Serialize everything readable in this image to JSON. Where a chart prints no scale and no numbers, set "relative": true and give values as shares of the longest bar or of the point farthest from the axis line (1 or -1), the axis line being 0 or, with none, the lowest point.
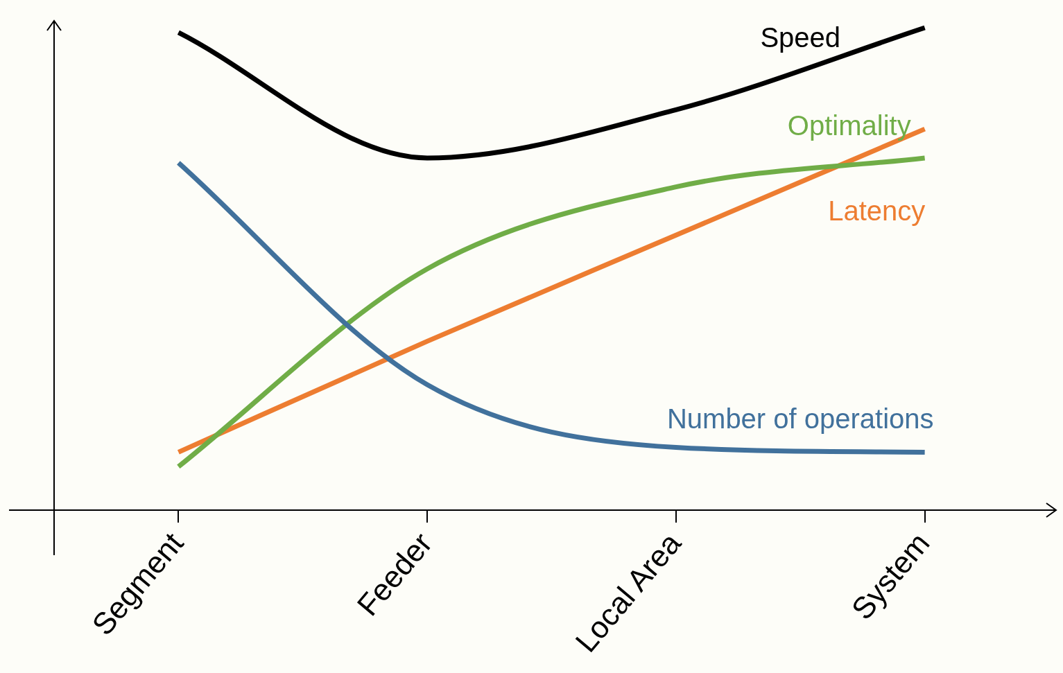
{
  "chart_data": {
    "type": "line",
    "relative": true,
    "categories": [
      "Segment",
      "Feeder",
      "Local Area",
      "System"
    ],
    "legend": false,
    "grid": false,
    "marker": "none",
    "line_style": "solid",
    "series": [
      {
        "name": "Speed",
        "color": "#000000",
        "values": [
          0.99,
          0.73,
          0.83,
          1
        ]
      },
      {
        "name": "Number of operations",
        "color": "#41719c",
        "values": [
          0.72,
          0.26,
          0.13,
          0.12
        ]
      },
      {
        "name": "Optimality",
        "color": "#70ad47",
        "values": [
          0.09,
          0.5,
          0.67,
          0.73
        ]
      },
      {
        "name": "Latency",
        "color": "#ed7d31",
        "values": [
          0.12,
          0.35,
          0.57,
          0.79
        ]
      }
    ]
  }
}
